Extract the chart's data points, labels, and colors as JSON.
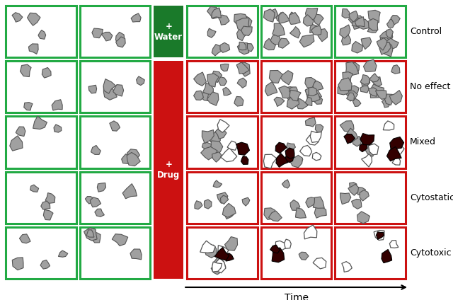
{
  "background_color": "#ffffff",
  "green_border": "#22aa44",
  "dark_green_fill": "#1a7a2a",
  "red_border": "#cc1111",
  "red_fill": "#cc1111",
  "row_labels": [
    "Control",
    "No effect",
    "Mixed",
    "Cytostatic",
    "Cytotoxic"
  ],
  "fig_width": 6.4,
  "fig_height": 4.24,
  "dpi": 100
}
